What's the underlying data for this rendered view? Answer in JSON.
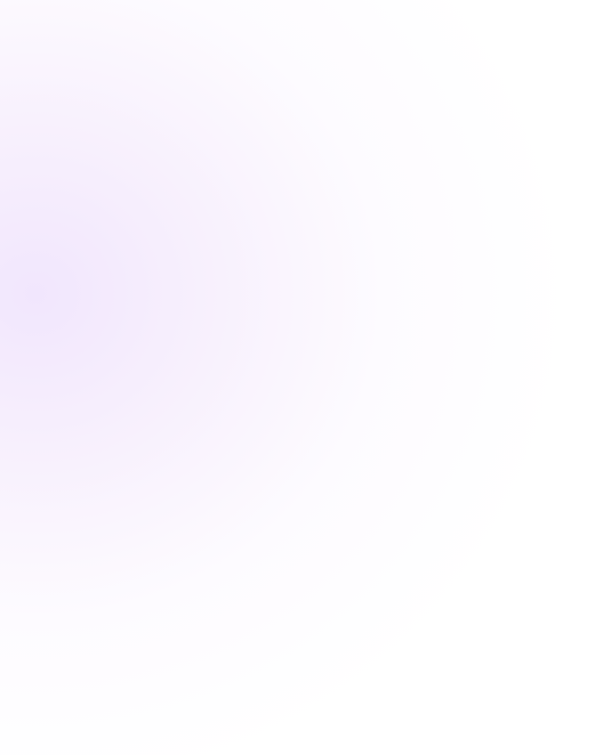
{
  "background": {
    "base_color": "#ffffff",
    "glow_color": "#f1e6fd"
  }
}
